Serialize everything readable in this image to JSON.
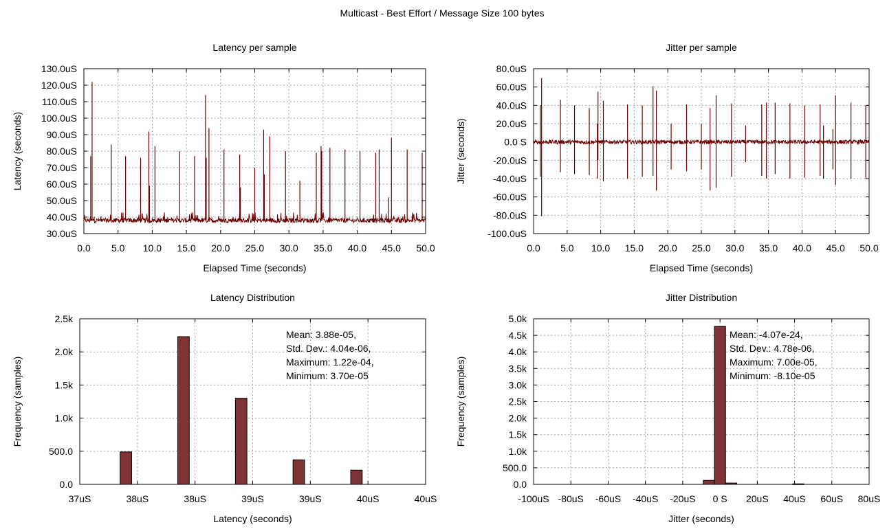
{
  "page_title": "Multicast -  Best Effort / Message Size 100 bytes",
  "colors": {
    "series": "#6b0000",
    "bar_fill": "#7f3335",
    "grid": "#a0a0a0"
  },
  "chart_data": [
    {
      "id": "latency_per_sample",
      "type": "line",
      "title": "Latency per sample",
      "xlabel": "Elapsed Time (seconds)",
      "ylabel": "Latency (seconds)",
      "xlim": [
        0,
        50
      ],
      "ylim": [
        30,
        130
      ],
      "x_ticks": [
        "0.0",
        "5.0",
        "10.0",
        "15.0",
        "20.0",
        "25.0",
        "30.0",
        "35.0",
        "40.0",
        "45.0",
        "50.0"
      ],
      "y_ticks": [
        "30.0uS",
        "40.0uS",
        "50.0uS",
        "60.0uS",
        "70.0uS",
        "80.0uS",
        "90.0uS",
        "100.0uS",
        "110.0uS",
        "120.0uS",
        "130.0uS"
      ],
      "grid": true,
      "baseline": 38,
      "spikes": [
        {
          "x": 1.0,
          "y": 77
        },
        {
          "x": 1.2,
          "y": 122
        },
        {
          "x": 4.0,
          "y": 84
        },
        {
          "x": 6.1,
          "y": 77
        },
        {
          "x": 8.3,
          "y": 76
        },
        {
          "x": 9.5,
          "y": 92
        },
        {
          "x": 9.6,
          "y": 59
        },
        {
          "x": 10.4,
          "y": 83
        },
        {
          "x": 14.0,
          "y": 80
        },
        {
          "x": 16.2,
          "y": 77
        },
        {
          "x": 17.8,
          "y": 114
        },
        {
          "x": 17.9,
          "y": 76
        },
        {
          "x": 18.3,
          "y": 94
        },
        {
          "x": 20.5,
          "y": 81
        },
        {
          "x": 22.8,
          "y": 78
        },
        {
          "x": 22.9,
          "y": 58
        },
        {
          "x": 25.0,
          "y": 70
        },
        {
          "x": 26.3,
          "y": 93
        },
        {
          "x": 26.4,
          "y": 66
        },
        {
          "x": 27.2,
          "y": 89
        },
        {
          "x": 29.5,
          "y": 80
        },
        {
          "x": 31.6,
          "y": 62
        },
        {
          "x": 34.0,
          "y": 79
        },
        {
          "x": 34.7,
          "y": 83
        },
        {
          "x": 34.8,
          "y": 80
        },
        {
          "x": 36.0,
          "y": 82
        },
        {
          "x": 38.2,
          "y": 81
        },
        {
          "x": 40.4,
          "y": 80
        },
        {
          "x": 42.7,
          "y": 79
        },
        {
          "x": 43.2,
          "y": 81
        },
        {
          "x": 44.6,
          "y": 52
        },
        {
          "x": 45.0,
          "y": 88
        },
        {
          "x": 47.3,
          "y": 81
        },
        {
          "x": 49.5,
          "y": 79
        }
      ]
    },
    {
      "id": "jitter_per_sample",
      "type": "line",
      "title": "Jitter per sample",
      "xlabel": "Elapsed Time (seconds)",
      "ylabel": "Jitter (seconds)",
      "xlim": [
        0,
        50
      ],
      "ylim": [
        -100,
        80
      ],
      "x_ticks": [
        "0.0",
        "5.0",
        "10.0",
        "15.0",
        "20.0",
        "25.0",
        "30.0",
        "35.0",
        "40.0",
        "45.0",
        "50.0"
      ],
      "y_ticks": [
        "-100.0uS",
        "-80.0uS",
        "-60.0uS",
        "-40.0uS",
        "-20.0uS",
        "0.0 S",
        "20.0uS",
        "40.0uS",
        "60.0uS",
        "80.0uS"
      ],
      "grid": true,
      "baseline": 0,
      "spikes": [
        {
          "x": 1.0,
          "y": 40,
          "low": -38
        },
        {
          "x": 1.2,
          "y": 70,
          "low": -81
        },
        {
          "x": 4.0,
          "y": 46,
          "low": -33
        },
        {
          "x": 6.1,
          "y": 40,
          "low": -35
        },
        {
          "x": 8.3,
          "y": 37,
          "low": -36
        },
        {
          "x": 9.5,
          "y": 20,
          "low": -40
        },
        {
          "x": 9.6,
          "y": 55,
          "low": -20
        },
        {
          "x": 10.4,
          "y": 45,
          "low": -43
        },
        {
          "x": 14.0,
          "y": 41,
          "low": -40
        },
        {
          "x": 16.2,
          "y": 40,
          "low": -38
        },
        {
          "x": 17.8,
          "y": 61,
          "low": -37
        },
        {
          "x": 18.3,
          "y": 56,
          "low": -53
        },
        {
          "x": 20.5,
          "y": 20,
          "low": -30
        },
        {
          "x": 22.8,
          "y": 41,
          "low": -32
        },
        {
          "x": 25.0,
          "y": 20,
          "low": -30
        },
        {
          "x": 26.3,
          "y": 37,
          "low": -53
        },
        {
          "x": 27.2,
          "y": 51,
          "low": -50
        },
        {
          "x": 29.5,
          "y": 42,
          "low": -38
        },
        {
          "x": 31.6,
          "y": 18,
          "low": -22
        },
        {
          "x": 34.0,
          "y": 41,
          "low": -37
        },
        {
          "x": 34.7,
          "y": 43,
          "low": -40
        },
        {
          "x": 36.0,
          "y": 43,
          "low": -35
        },
        {
          "x": 38.2,
          "y": 42,
          "low": -40
        },
        {
          "x": 40.4,
          "y": 40,
          "low": -39
        },
        {
          "x": 42.7,
          "y": 41,
          "low": -37
        },
        {
          "x": 43.2,
          "y": 18,
          "low": -40
        },
        {
          "x": 44.6,
          "y": 14,
          "low": -30
        },
        {
          "x": 45.0,
          "y": 51,
          "low": -47
        },
        {
          "x": 47.3,
          "y": 43,
          "low": -40
        },
        {
          "x": 49.5,
          "y": 40,
          "low": -40
        }
      ]
    },
    {
      "id": "latency_distribution",
      "type": "bar",
      "title": "Latency Distribution",
      "xlabel": "Latency (seconds)",
      "ylabel": "Frequency (samples)",
      "xlim": [
        0,
        6
      ],
      "ylim": [
        0,
        2500
      ],
      "x_ticks": [
        "37uS",
        "38uS",
        "38uS",
        "39uS",
        "39uS",
        "40uS",
        "40uS"
      ],
      "y_ticks": [
        "0.0",
        "500.0",
        "1.0k",
        "1.5k",
        "2.0k",
        "2.5k"
      ],
      "grid": true,
      "bar_width": 0.2,
      "bars": [
        {
          "x": 0.8,
          "value": 490
        },
        {
          "x": 1.8,
          "value": 2230
        },
        {
          "x": 2.8,
          "value": 1300
        },
        {
          "x": 3.8,
          "value": 370
        },
        {
          "x": 4.8,
          "value": 215
        }
      ],
      "stats": [
        "Mean: 3.88e-05,",
        "Std. Dev.: 4.04e-06,",
        "Maximum: 1.22e-04,",
        "Minimum: 3.70e-05"
      ]
    },
    {
      "id": "jitter_distribution",
      "type": "bar",
      "title": "Jitter Distribution",
      "xlabel": "Jitter (seconds)",
      "ylabel": "Frequency (samples)",
      "xlim": [
        -100,
        80
      ],
      "ylim": [
        0,
        5000
      ],
      "x_ticks": [
        "-100uS",
        "-80uS",
        "-60uS",
        "-40uS",
        "-20uS",
        "0 S",
        "20uS",
        "40uS",
        "60uS",
        "80uS"
      ],
      "y_ticks": [
        "0.0",
        "500.0",
        "1.0k",
        "1.5k",
        "2.0k",
        "2.5k",
        "3.0k",
        "3.5k",
        "4.0k",
        "4.5k",
        "5.0k"
      ],
      "grid": true,
      "bar_width": 6,
      "bars": [
        {
          "x": -6,
          "value": 120
        },
        {
          "x": 0,
          "value": 4770
        },
        {
          "x": 6,
          "value": 40
        },
        {
          "x": 42,
          "value": 15
        }
      ],
      "stats": [
        "Mean: -4.07e-24,",
        "Std. Dev.: 4.78e-06,",
        "Maximum: 7.00e-05,",
        "Minimum: -8.10e-05"
      ]
    }
  ]
}
